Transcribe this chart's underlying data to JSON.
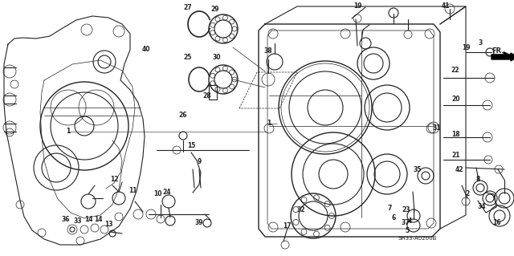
{
  "bg_color": "#ffffff",
  "line_color": "#222222",
  "diagram_ref": "SH33-A0200B",
  "arrow_label": "FR.",
  "figsize": [
    6.4,
    3.19
  ],
  "dpi": 100,
  "xlim": [
    0,
    640
  ],
  "ylim": [
    0,
    319
  ]
}
